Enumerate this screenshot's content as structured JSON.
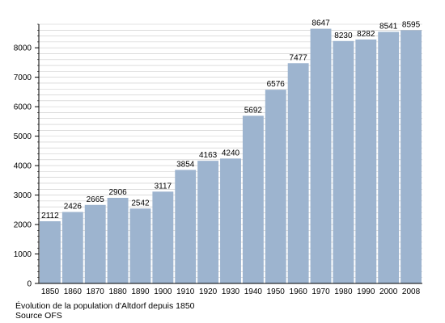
{
  "chart_data": {
    "type": "bar",
    "title": "",
    "xlabel": "",
    "ylabel": "",
    "categories": [
      "1850",
      "1860",
      "1870",
      "1880",
      "1890",
      "1900",
      "1910",
      "1920",
      "1930",
      "1940",
      "1950",
      "1960",
      "1970",
      "1980",
      "1990",
      "2000",
      "2008"
    ],
    "values": [
      2112,
      2426,
      2665,
      2906,
      2542,
      3117,
      3854,
      4163,
      4240,
      5692,
      6576,
      7477,
      8647,
      8230,
      8282,
      8541,
      8595
    ],
    "ylim": [
      0,
      8800
    ],
    "yticks": [
      "0",
      "1000",
      "2000",
      "3000",
      "4000",
      "5000",
      "6000",
      "7000",
      "8000"
    ],
    "yminor_step": 200,
    "grid": true,
    "bar_color": "#9db4cf",
    "grid_color": "#c8c8c8"
  },
  "caption": {
    "line1": "Évolution de la population d'Altdorf depuis 1850",
    "line2": "Source OFS"
  }
}
